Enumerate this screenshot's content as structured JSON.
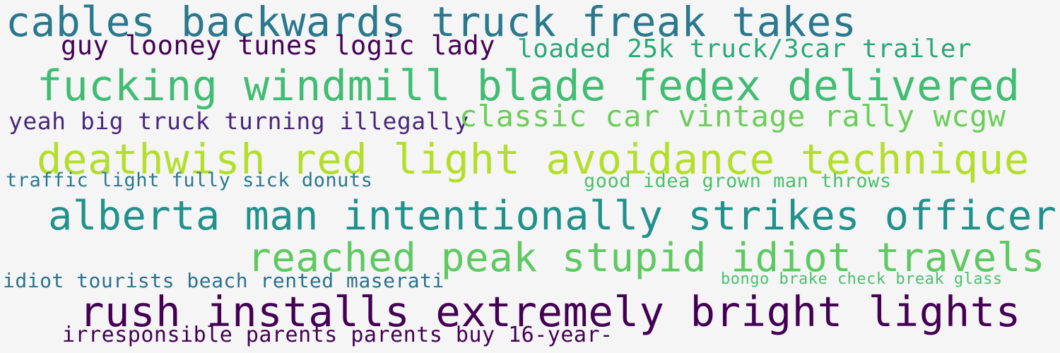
{
  "word_cloud": {
    "background": "#f5f5f5",
    "phrases": [
      {
        "text": "cables backwards truck freak takes",
        "color": "#2a788e"
      },
      {
        "text": "guy looney tunes logic lady",
        "color": "#440154"
      },
      {
        "text": "loaded 25k truck/3car trailer",
        "color": "#2aa87a"
      },
      {
        "text": "fucking windmill blade fedex delivered",
        "color": "#40bd72"
      },
      {
        "text": "yeah big truck turning illegally",
        "color": "#482878"
      },
      {
        "text": "classic car vintage rally wcgw",
        "color": "#6ccd5a"
      },
      {
        "text": "deathwish red light avoidance technique",
        "color": "#b5de2b"
      },
      {
        "text": "traffic light fully sick donuts",
        "color": "#2a788e"
      },
      {
        "text": "good idea grown man throws",
        "color": "#4ac16d"
      },
      {
        "text": "alberta man intentionally strikes officer",
        "color": "#21918c"
      },
      {
        "text": "reached peak stupid idiot travels",
        "color": "#5ec962"
      },
      {
        "text": "idiot tourists beach rented maserati",
        "color": "#2c728e"
      },
      {
        "text": "bongo brake check break glass",
        "color": "#4ac16d"
      },
      {
        "text": "rush installs extremely bright lights",
        "color": "#440154"
      },
      {
        "text": "irresponsible parents parents buy 16-year-",
        "color": "#440154"
      }
    ]
  }
}
